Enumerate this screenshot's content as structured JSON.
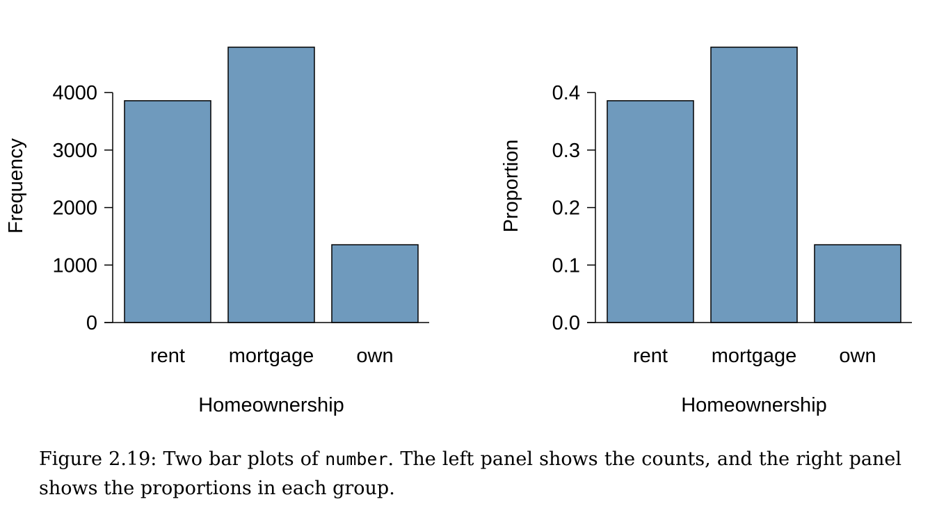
{
  "chart_data": [
    {
      "type": "bar",
      "categories": [
        "rent",
        "mortgage",
        "own"
      ],
      "values": [
        3858,
        4789,
        1353
      ],
      "ylim": [
        0,
        4800
      ],
      "yticks": [
        0,
        1000,
        2000,
        3000,
        4000
      ],
      "ytick_labels": [
        "0",
        "1000",
        "2000",
        "3000",
        "4000"
      ],
      "xlabel": "Homeownership",
      "ylabel": "Frequency",
      "bar_color": "#6f9abd",
      "grid": false
    },
    {
      "type": "bar",
      "categories": [
        "rent",
        "mortgage",
        "own"
      ],
      "values": [
        0.3858,
        0.4789,
        0.1353
      ],
      "ylim": [
        0,
        0.48
      ],
      "yticks": [
        0.0,
        0.1,
        0.2,
        0.3,
        0.4
      ],
      "ytick_labels": [
        "0.0",
        "0.1",
        "0.2",
        "0.3",
        "0.4"
      ],
      "xlabel": "Homeownership",
      "ylabel": "Proportion",
      "bar_color": "#6f9abd",
      "grid": false
    }
  ],
  "caption": {
    "prefix": "Figure 2.19: Two bar plots of ",
    "code": "number",
    "suffix": ". The left panel shows the counts, and the right panel shows the proportions in each group."
  }
}
